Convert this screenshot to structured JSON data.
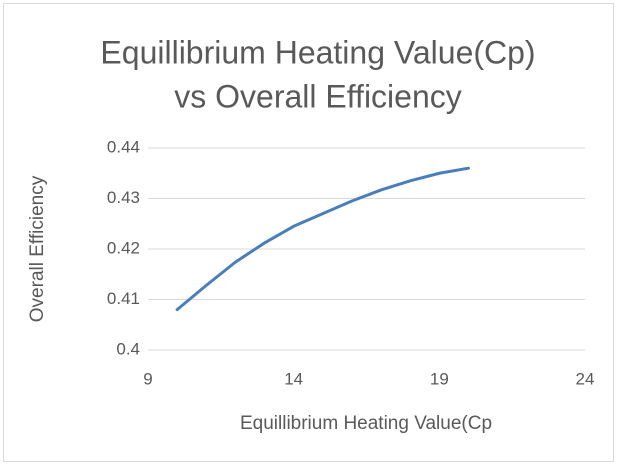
{
  "chart_data": {
    "type": "line",
    "title": [
      "Equillibrium Heating Value(Cp)",
      "vs Overall Efficiency"
    ],
    "x_label": "Equillibrium Heating Value(Cp",
    "y_label": "Overall Efficiency",
    "x": [
      10,
      11,
      12,
      13,
      14,
      15,
      16,
      17,
      18,
      19,
      20
    ],
    "series": [
      {
        "name": "Overall Efficiency",
        "color": "#4a7ebb",
        "values": [
          0.408,
          0.4128,
          0.4174,
          0.4212,
          0.4245,
          0.427,
          0.4295,
          0.4317,
          0.4335,
          0.435,
          0.436
        ]
      }
    ],
    "xlim": [
      9,
      24
    ],
    "xticks": [
      9,
      14,
      19,
      24
    ],
    "ylim": [
      0.4,
      0.44
    ],
    "yticks": [
      0.4,
      0.41,
      0.42,
      0.43,
      0.44
    ],
    "grid": true
  }
}
